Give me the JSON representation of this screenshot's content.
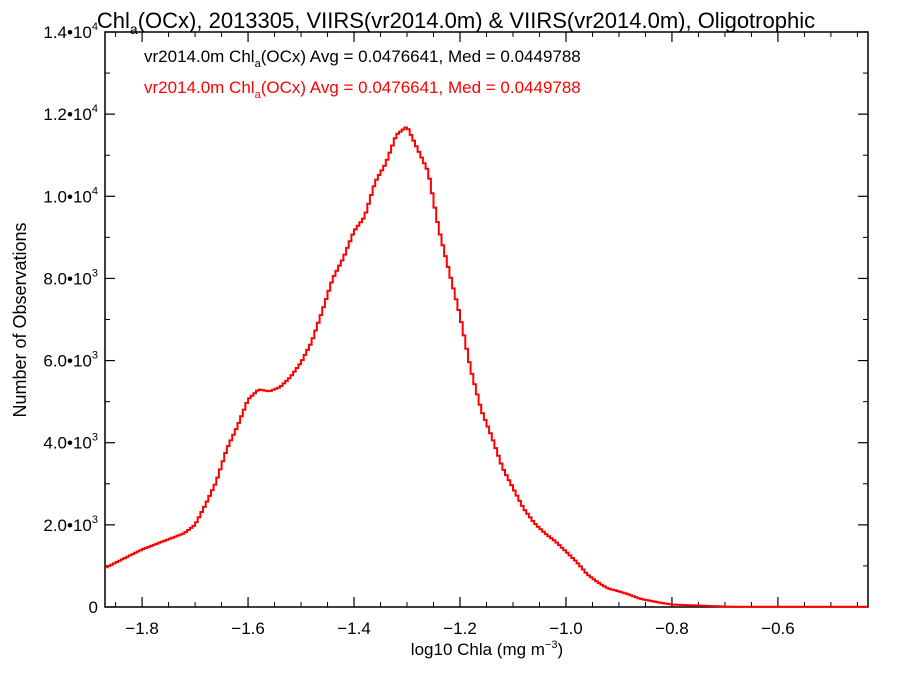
{
  "chart_data": {
    "type": "line",
    "title": {
      "prefix": "Chl",
      "sub": "a",
      "suffix": "(OCx), 2013305, VIIRS(vr2014.0m) & VIIRS(vr2014.0m), Oligotrophic"
    },
    "xlabel": {
      "main": "log10 Chla (mg m",
      "sup": "−3",
      "end": ")"
    },
    "ylabel": "Number of Observations",
    "xlim": [
      -1.87,
      -0.43
    ],
    "ylim": [
      0,
      14000
    ],
    "xticks": [
      -1.8,
      -1.6,
      -1.4,
      -1.2,
      -1.0,
      -0.8,
      -0.6
    ],
    "xtick_labels": [
      "−1.8",
      "−1.6",
      "−1.4",
      "−1.2",
      "−1.0",
      "−0.8",
      "−0.6"
    ],
    "yticks": [
      {
        "value": 0,
        "label": "0",
        "exp": ""
      },
      {
        "value": 2000,
        "label": "2.0•10",
        "exp": "3"
      },
      {
        "value": 4000,
        "label": "4.0•10",
        "exp": "3"
      },
      {
        "value": 6000,
        "label": "6.0•10",
        "exp": "3"
      },
      {
        "value": 8000,
        "label": "8.0•10",
        "exp": "3"
      },
      {
        "value": 10000,
        "label": "1.0•10",
        "exp": "4"
      },
      {
        "value": 12000,
        "label": "1.2•10",
        "exp": "4"
      },
      {
        "value": 14000,
        "label": "1.4•10",
        "exp": "4"
      }
    ],
    "annotations": [
      {
        "pre": "vr2014.0m Chl",
        "sub": "a",
        "post": "(OCx) Avg = 0.0476641, Med = 0.0449788",
        "color": "#000000"
      },
      {
        "pre": "vr2014.0m Chl",
        "sub": "a",
        "post": "(OCx) Avg = 0.0476641, Med = 0.0449788",
        "color": "#ff0000"
      }
    ],
    "series": [
      {
        "color": "#ff0000",
        "style": "step",
        "x": [
          -1.87,
          -1.8,
          -1.75,
          -1.72,
          -1.7,
          -1.68,
          -1.66,
          -1.64,
          -1.62,
          -1.6,
          -1.58,
          -1.56,
          -1.54,
          -1.52,
          -1.5,
          -1.48,
          -1.46,
          -1.44,
          -1.42,
          -1.4,
          -1.38,
          -1.36,
          -1.34,
          -1.32,
          -1.3,
          -1.28,
          -1.26,
          -1.24,
          -1.22,
          -1.2,
          -1.18,
          -1.16,
          -1.14,
          -1.12,
          -1.1,
          -1.08,
          -1.06,
          -1.04,
          -1.02,
          -1.0,
          -0.98,
          -0.96,
          -0.94,
          -0.92,
          -0.9,
          -0.88,
          -0.86,
          -0.84,
          -0.82,
          -0.8,
          -0.78,
          -0.76,
          -0.74,
          -0.72,
          -0.7,
          -0.65,
          -0.6,
          -0.55,
          -0.5,
          -0.45,
          -0.43
        ],
        "y": [
          950,
          1400,
          1650,
          1800,
          2000,
          2500,
          3050,
          3850,
          4400,
          5050,
          5300,
          5250,
          5350,
          5600,
          5950,
          6450,
          7200,
          8000,
          8500,
          9150,
          9500,
          10350,
          10800,
          11500,
          11700,
          11150,
          10600,
          9200,
          8150,
          7100,
          5800,
          4800,
          4150,
          3400,
          2900,
          2400,
          2050,
          1800,
          1600,
          1350,
          1100,
          800,
          600,
          450,
          380,
          300,
          200,
          150,
          100,
          60,
          50,
          40,
          30,
          20,
          10,
          5,
          5,
          5,
          5,
          5,
          5
        ]
      }
    ]
  }
}
